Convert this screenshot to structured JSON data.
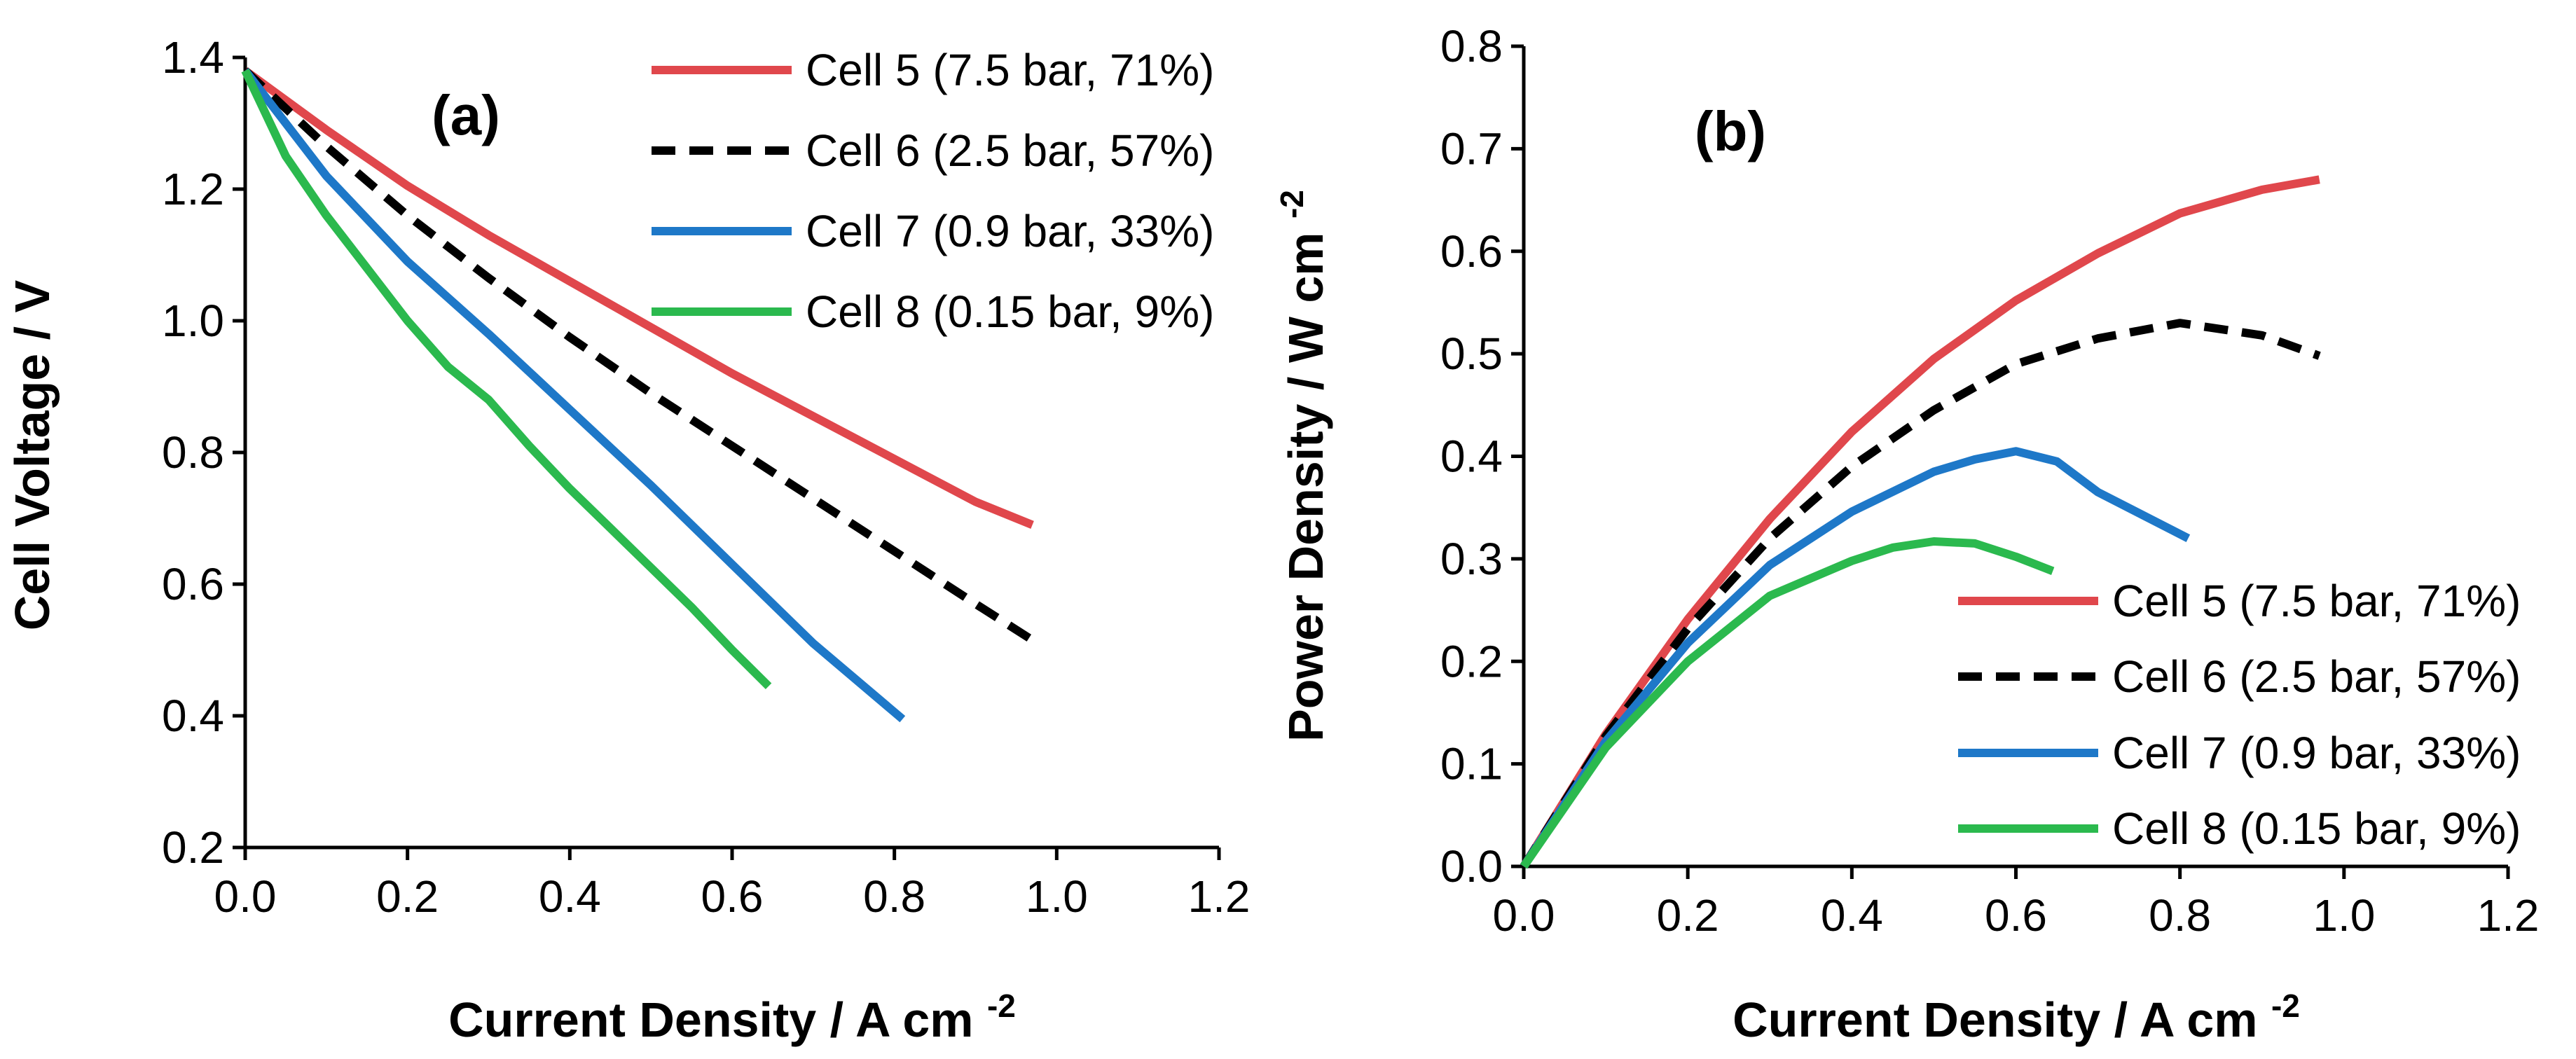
{
  "chart_data": [
    {
      "type": "line",
      "panel_label": "(a)",
      "xlabel": "Current Density / A cm",
      "xlabel_sup": "-2",
      "ylabel": "Cell Voltage / V",
      "xlim": [
        0,
        1.2
      ],
      "ylim": [
        0.2,
        1.4
      ],
      "xticks": [
        "0.0",
        "0.2",
        "0.4",
        "0.6",
        "0.8",
        "1.0",
        "1.2"
      ],
      "yticks": [
        "0.2",
        "0.4",
        "0.6",
        "0.8",
        "1.0",
        "1.2",
        "1.4"
      ],
      "legend_position": "top-right",
      "series": [
        {
          "name": "Cell 5 (7.5 bar, 71%)",
          "color": "#e0474c",
          "dash": "solid",
          "x": [
            0,
            0.1,
            0.2,
            0.3,
            0.4,
            0.5,
            0.6,
            0.7,
            0.8,
            0.9,
            0.97
          ],
          "y": [
            1.38,
            1.29,
            1.205,
            1.13,
            1.06,
            0.99,
            0.92,
            0.855,
            0.79,
            0.725,
            0.69
          ]
        },
        {
          "name": "Cell 6 (2.5 bar, 57%)",
          "color": "#000000",
          "dash": "dashed",
          "x": [
            0,
            0.1,
            0.2,
            0.3,
            0.4,
            0.5,
            0.6,
            0.7,
            0.8,
            0.9,
            0.97
          ],
          "y": [
            1.38,
            1.265,
            1.16,
            1.065,
            0.975,
            0.89,
            0.81,
            0.73,
            0.65,
            0.57,
            0.515
          ]
        },
        {
          "name": "Cell 7 (0.9 bar, 33%)",
          "color": "#1e78c8",
          "dash": "solid",
          "x": [
            0,
            0.1,
            0.2,
            0.3,
            0.4,
            0.5,
            0.6,
            0.7,
            0.81
          ],
          "y": [
            1.38,
            1.22,
            1.09,
            0.98,
            0.865,
            0.75,
            0.63,
            0.51,
            0.395
          ]
        },
        {
          "name": "Cell 8 (0.15 bar, 9%)",
          "color": "#2bb94e",
          "dash": "solid",
          "x": [
            0,
            0.05,
            0.1,
            0.15,
            0.2,
            0.25,
            0.3,
            0.35,
            0.4,
            0.45,
            0.5,
            0.55,
            0.6,
            0.645
          ],
          "y": [
            1.38,
            1.25,
            1.16,
            1.08,
            1.0,
            0.93,
            0.88,
            0.81,
            0.745,
            0.685,
            0.625,
            0.565,
            0.5,
            0.445
          ]
        }
      ]
    },
    {
      "type": "line",
      "panel_label": "(b)",
      "xlabel": "Current Density / A cm",
      "xlabel_sup": "-2",
      "ylabel": "Power Density / W cm",
      "ylabel_sup": "-2",
      "xlim": [
        0,
        1.2
      ],
      "ylim": [
        0,
        0.8
      ],
      "xticks": [
        "0.0",
        "0.2",
        "0.4",
        "0.6",
        "0.8",
        "1.0",
        "1.2"
      ],
      "yticks": [
        "0.0",
        "0.1",
        "0.2",
        "0.3",
        "0.4",
        "0.5",
        "0.6",
        "0.7",
        "0.8"
      ],
      "legend_position": "bottom-right",
      "series": [
        {
          "name": "Cell 5 (7.5 bar, 71%)",
          "color": "#e0474c",
          "dash": "solid",
          "x": [
            0,
            0.1,
            0.2,
            0.3,
            0.4,
            0.5,
            0.6,
            0.7,
            0.8,
            0.9,
            0.97
          ],
          "y": [
            0,
            0.129,
            0.241,
            0.339,
            0.424,
            0.495,
            0.552,
            0.598,
            0.637,
            0.66,
            0.67
          ]
        },
        {
          "name": "Cell 6 (2.5 bar, 57%)",
          "color": "#000000",
          "dash": "dashed",
          "x": [
            0,
            0.1,
            0.2,
            0.3,
            0.4,
            0.5,
            0.6,
            0.7,
            0.8,
            0.9,
            0.97
          ],
          "y": [
            0,
            0.127,
            0.232,
            0.32,
            0.39,
            0.445,
            0.49,
            0.515,
            0.53,
            0.518,
            0.498
          ]
        },
        {
          "name": "Cell 7 (0.9 bar, 33%)",
          "color": "#1e78c8",
          "dash": "solid",
          "x": [
            0,
            0.1,
            0.2,
            0.3,
            0.4,
            0.5,
            0.55,
            0.6,
            0.65,
            0.7,
            0.81
          ],
          "y": [
            0,
            0.122,
            0.218,
            0.294,
            0.346,
            0.385,
            0.397,
            0.405,
            0.395,
            0.365,
            0.32
          ]
        },
        {
          "name": "Cell 8 (0.15 bar, 9%)",
          "color": "#2bb94e",
          "dash": "solid",
          "x": [
            0,
            0.1,
            0.2,
            0.3,
            0.4,
            0.45,
            0.5,
            0.55,
            0.6,
            0.645
          ],
          "y": [
            0,
            0.116,
            0.2,
            0.264,
            0.298,
            0.311,
            0.317,
            0.315,
            0.302,
            0.288
          ]
        }
      ]
    }
  ]
}
